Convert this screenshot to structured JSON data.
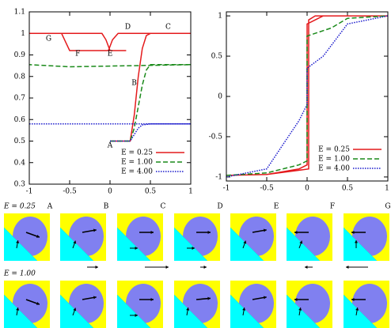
{
  "chart_data": [
    {
      "type": "line",
      "xlim": [
        -1,
        1
      ],
      "xticks": [
        -1,
        -0.5,
        0,
        0.5,
        1
      ],
      "ylim": [
        0.3,
        1.1
      ],
      "yticks": [
        0.3,
        0.4,
        0.5,
        0.6,
        0.7,
        0.8,
        0.9,
        1,
        1.1
      ],
      "legend": "lower-right",
      "series": [
        {
          "name": "E = 0.25",
          "color": "#e41a1c",
          "style": "solid",
          "x": [
            0,
            0.25,
            0.3,
            0.35,
            0.4,
            0.45,
            0.5,
            1,
            0.1,
            0.03,
            -0.02,
            -0.5,
            -0.55,
            -0.6,
            -1,
            -0.1,
            -0.05,
            0,
            0.05,
            0.2,
            -0.5
          ],
          "values": [
            0.5,
            0.5,
            0.62,
            0.8,
            0.93,
            0.99,
            1,
            1,
            1,
            0.97,
            0.92,
            0.92,
            0.96,
            1,
            1,
            1,
            0.97,
            0.92,
            0.92,
            0.92,
            0.92
          ]
        },
        {
          "name": "E = 1.00",
          "color": "#1a8a1a",
          "style": "dashed",
          "x": [
            0,
            0.25,
            0.3,
            0.35,
            0.4,
            0.45,
            0.5,
            1,
            -0.5,
            -1
          ],
          "values": [
            0.5,
            0.5,
            0.56,
            0.66,
            0.76,
            0.83,
            0.855,
            0.855,
            0.845,
            0.855
          ]
        },
        {
          "name": "E = 4.00",
          "color": "#1a1acc",
          "style": "dotted",
          "x": [
            0,
            0.25,
            0.3,
            0.35,
            0.4,
            0.5,
            1,
            -1
          ],
          "values": [
            0.5,
            0.5,
            0.53,
            0.56,
            0.575,
            0.58,
            0.58,
            0.58
          ]
        }
      ],
      "annotations": [
        {
          "text": "A",
          "x": 0,
          "y": 0.48
        },
        {
          "text": "B",
          "x": 0.3,
          "y": 0.77
        },
        {
          "text": "C",
          "x": 0.72,
          "y": 1.03
        },
        {
          "text": "D",
          "x": 0.22,
          "y": 1.03
        },
        {
          "text": "E",
          "x": 0,
          "y": 0.905
        },
        {
          "text": "F",
          "x": -0.4,
          "y": 0.905
        },
        {
          "text": "G",
          "x": -0.76,
          "y": 0.975
        }
      ]
    },
    {
      "type": "line",
      "xlim": [
        -1,
        1
      ],
      "xticks": [
        -1,
        -0.5,
        0,
        0.5,
        1
      ],
      "ylim": [
        -1.05,
        1.05
      ],
      "yticks": [
        -1,
        -0.5,
        0,
        0.5,
        1
      ],
      "legend": "lower-right",
      "series": [
        {
          "name": "E = 0.25",
          "color": "#e41a1c",
          "style": "solid",
          "x": [
            -1,
            -0.5,
            -0.1,
            0,
            0,
            0.1,
            0.2,
            0.3,
            0.5,
            1,
            0.5,
            0.1,
            0.02,
            0.02,
            -0.2,
            -0.5,
            -1
          ],
          "values": [
            -0.98,
            -0.97,
            -0.9,
            -0.85,
            0.9,
            0.95,
            1,
            1,
            1,
            1,
            1,
            1,
            0.95,
            -0.9,
            -0.93,
            -0.97,
            -0.98
          ]
        },
        {
          "name": "E = 1.00",
          "color": "#1a8a1a",
          "style": "dashed",
          "x": [
            -1,
            -0.5,
            -0.1,
            0,
            0,
            0.3,
            0.5,
            1
          ],
          "values": [
            -0.98,
            -0.95,
            -0.85,
            -0.8,
            0.75,
            0.85,
            0.97,
            1
          ]
        },
        {
          "name": "E = 4.00",
          "color": "#1a1acc",
          "style": "dotted",
          "x": [
            -1,
            -0.5,
            -0.3,
            -0.1,
            0,
            0,
            0.2,
            0.5,
            1
          ],
          "values": [
            -1,
            -0.9,
            -0.6,
            -0.3,
            -0.1,
            0.35,
            0.5,
            0.9,
            1
          ]
        }
      ]
    }
  ],
  "panels": {
    "rows": [
      "E = 0.25",
      "E = 1.00"
    ],
    "columns": [
      "A",
      "B",
      "C",
      "D",
      "E",
      "F",
      "G"
    ]
  }
}
